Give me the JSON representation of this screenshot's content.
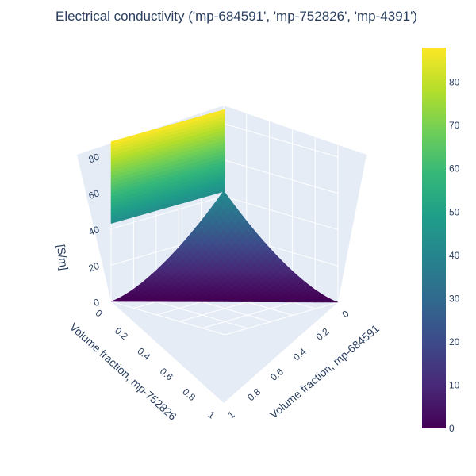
{
  "chart_data": {
    "type": "surface3d",
    "title": "Electrical conductivity ('mp-684591', 'mp-752826', 'mp-4391')",
    "x_axis": {
      "label": "Volume fraction, mp-684591",
      "ticks": [
        "0",
        "0.2",
        "0.4",
        "0.6",
        "0.8",
        "1"
      ],
      "range": [
        0,
        1
      ]
    },
    "y_axis": {
      "label": "Volume fraction, mp-752826",
      "ticks": [
        "0",
        "0.2",
        "0.4",
        "0.6",
        "0.8",
        "1"
      ],
      "range": [
        0,
        1
      ]
    },
    "z_axis": {
      "label": "[S/m]",
      "ticks": [
        "0",
        "20",
        "40",
        "60",
        "80"
      ],
      "range": [
        0,
        90
      ]
    },
    "colorbar": {
      "colorscale": "Viridis",
      "range": [
        0,
        88
      ],
      "ticks": [
        "0",
        "10",
        "20",
        "30",
        "40",
        "50",
        "60",
        "70",
        "80"
      ]
    },
    "surface_samples": [
      {
        "x": 0,
        "y": 0,
        "z": 43
      },
      {
        "x": 1,
        "y": 0,
        "z": 0
      },
      {
        "x": 0,
        "y": 1,
        "z": 88
      },
      {
        "x": 0,
        "y": 0.999,
        "z": 43
      }
    ],
    "colors": {
      "scene_background": "#e5ecf6",
      "grid": "#ffffff",
      "text": "#2a3f5f"
    }
  }
}
